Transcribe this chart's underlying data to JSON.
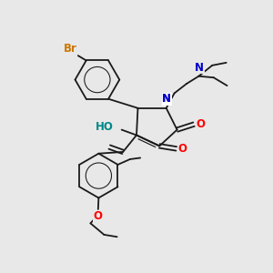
{
  "background_color": "#e8e8e8",
  "bond_color": "#1a1a1a",
  "atom_colors": {
    "Br": "#cc7700",
    "N": "#0000cc",
    "O": "#ff0000",
    "HO": "#008888"
  },
  "figsize": [
    3.0,
    3.0
  ],
  "dpi": 100,
  "lw": 1.3,
  "lw_inner": 0.85
}
